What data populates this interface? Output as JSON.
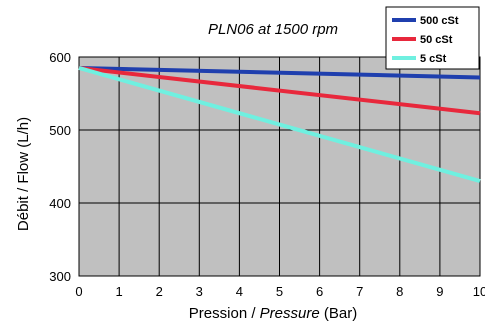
{
  "chart_data": {
    "type": "line",
    "title": "PLN06 at 1500 rpm",
    "xlabel_prefix": "Pression / ",
    "xlabel_italic": "Pressure",
    "xlabel_suffix": " (Bar)",
    "ylabel": "Débit / Flow (L/h)",
    "xlim": [
      0,
      10
    ],
    "ylim": [
      300,
      600
    ],
    "xticks": [
      "0",
      "1",
      "2",
      "3",
      "4",
      "5",
      "6",
      "7",
      "8",
      "9",
      "10"
    ],
    "yticks": [
      "300",
      "400",
      "500",
      "600"
    ],
    "grid": true,
    "legend_position": "top-right",
    "x": [
      0,
      10
    ],
    "series": [
      {
        "name": "500 cSt",
        "color": "#1f3fae",
        "values": [
          585,
          572
        ]
      },
      {
        "name": "50 cSt",
        "color": "#e8283c",
        "values": [
          585,
          523
        ]
      },
      {
        "name": "5 cSt",
        "color": "#6ff0e0",
        "values": [
          585,
          430
        ]
      }
    ],
    "plot_background": "#c0c0c0"
  }
}
